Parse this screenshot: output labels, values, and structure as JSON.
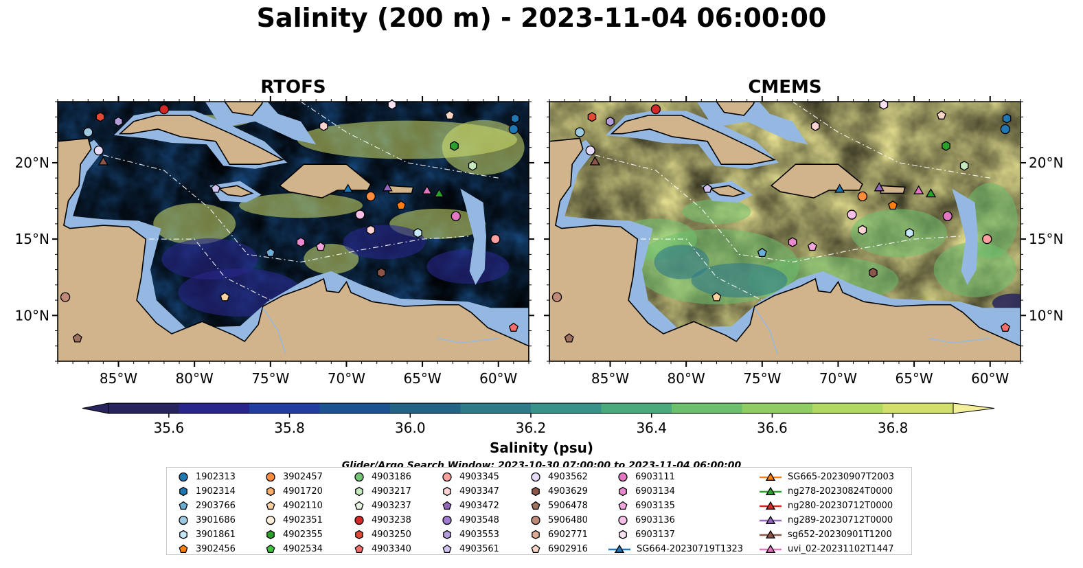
{
  "title": "Salinity (200 m) - 2023-11-04 06:00:00",
  "panels": [
    {
      "title": "RTOFS",
      "model": "rtofs"
    },
    {
      "title": "CMEMS",
      "model": "cmems"
    }
  ],
  "axes": {
    "lon_ticks": [
      "85°W",
      "80°W",
      "75°W",
      "70°W",
      "65°W",
      "60°W"
    ],
    "lat_ticks": [
      "20°N",
      "15°N",
      "10°N"
    ],
    "lon_range": [
      -89,
      -58
    ],
    "lat_range": [
      7,
      24
    ]
  },
  "colorbar": {
    "label": "Salinity (psu)",
    "ticks": [
      "35.6",
      "35.8",
      "36.0",
      "36.2",
      "36.4",
      "36.6",
      "36.8"
    ],
    "range": [
      35.5,
      36.9
    ],
    "colors": [
      "#27235c",
      "#28268a",
      "#1f3ea0",
      "#1b5390",
      "#236484",
      "#2f7a88",
      "#38928a",
      "#4aaa7c",
      "#6cbf6d",
      "#8ecd62",
      "#b1d860",
      "#d1e06d",
      "#f4ef9a"
    ]
  },
  "search_window": "Glider/Argo Search Window: 2023-10-30 07:00:00 to 2023-11-04 06:00:00",
  "colors": {
    "land": "#d2b48c",
    "shallow": "#94b8e2",
    "deep": "#1e2a70"
  },
  "legend": [
    {
      "label": "1902313",
      "marker": "circle",
      "color": "#1f77b4"
    },
    {
      "label": "1902314",
      "marker": "hexagon",
      "color": "#1f77b4"
    },
    {
      "label": "2903766",
      "marker": "pentagon",
      "color": "#6baed6"
    },
    {
      "label": "3901686",
      "marker": "circle",
      "color": "#9ecae1"
    },
    {
      "label": "3901861",
      "marker": "hexagon",
      "color": "#c6e7f7"
    },
    {
      "label": "3902456",
      "marker": "pentagon",
      "color": "#ff7f0e"
    },
    {
      "label": "3902457",
      "marker": "circle",
      "color": "#fd8d3c"
    },
    {
      "label": "4901720",
      "marker": "hexagon",
      "color": "#fdae6b"
    },
    {
      "label": "4902110",
      "marker": "pentagon",
      "color": "#fdd0a2"
    },
    {
      "label": "4902351",
      "marker": "circle",
      "color": "#feeeda"
    },
    {
      "label": "4902355",
      "marker": "hexagon",
      "color": "#2ca02c"
    },
    {
      "label": "4902534",
      "marker": "pentagon",
      "color": "#41c441"
    },
    {
      "label": "4903186",
      "marker": "circle",
      "color": "#74c476"
    },
    {
      "label": "4903217",
      "marker": "hexagon",
      "color": "#c7e9c0"
    },
    {
      "label": "4903237",
      "marker": "pentagon",
      "color": "#e5f5e0"
    },
    {
      "label": "4903238",
      "marker": "circle",
      "color": "#d62728"
    },
    {
      "label": "4903250",
      "marker": "hexagon",
      "color": "#e34a33"
    },
    {
      "label": "4903340",
      "marker": "pentagon",
      "color": "#f46d6d"
    },
    {
      "label": "4903345",
      "marker": "circle",
      "color": "#fc9f9f"
    },
    {
      "label": "4903347",
      "marker": "hexagon",
      "color": "#fdd3d3"
    },
    {
      "label": "4903472",
      "marker": "pentagon",
      "color": "#9467bd"
    },
    {
      "label": "4903548",
      "marker": "circle",
      "color": "#9e7bd0"
    },
    {
      "label": "4903553",
      "marker": "hexagon",
      "color": "#b39ddb"
    },
    {
      "label": "4903561",
      "marker": "pentagon",
      "color": "#d0c2ee"
    },
    {
      "label": "4903562",
      "marker": "circle",
      "color": "#e6dcf7"
    },
    {
      "label": "4903629",
      "marker": "hexagon",
      "color": "#8c564b"
    },
    {
      "label": "5906478",
      "marker": "pentagon",
      "color": "#a0715f"
    },
    {
      "label": "5906480",
      "marker": "circle",
      "color": "#c08a78"
    },
    {
      "label": "6902771",
      "marker": "hexagon",
      "color": "#e0ab98"
    },
    {
      "label": "6902916",
      "marker": "pentagon",
      "color": "#f7d5c6"
    },
    {
      "label": "6903111",
      "marker": "circle",
      "color": "#e377c2"
    },
    {
      "label": "6903134",
      "marker": "hexagon",
      "color": "#e989cf"
    },
    {
      "label": "6903135",
      "marker": "pentagon",
      "color": "#f2a5dc"
    },
    {
      "label": "6903136",
      "marker": "circle",
      "color": "#f7bfe6"
    },
    {
      "label": "6903137",
      "marker": "hexagon",
      "color": "#fbe1f2"
    },
    {
      "label": "SG664-20230719T1323",
      "marker": "triangle",
      "color": "#1f77b4"
    },
    {
      "label": "SG665-20230907T2003",
      "marker": "triangle",
      "color": "#ff7f0e"
    },
    {
      "label": "ng278-20230824T0000",
      "marker": "triangle",
      "color": "#2ca02c"
    },
    {
      "label": "ng280-20230712T0000",
      "marker": "triangle",
      "color": "#d62728"
    },
    {
      "label": "ng289-20230712T0000",
      "marker": "triangle",
      "color": "#9467bd"
    },
    {
      "label": "sg652-20230901T1200",
      "marker": "triangle",
      "color": "#8c564b"
    },
    {
      "label": "uvi_02-20231102T1447",
      "marker": "triangle",
      "color": "#e377c2"
    }
  ],
  "observations": [
    {
      "id": "4903238",
      "lon": -82.0,
      "lat": 23.5
    },
    {
      "id": "4903250",
      "lon": -86.2,
      "lat": 23.0
    },
    {
      "id": "4903553",
      "lon": -85.0,
      "lat": 22.7
    },
    {
      "id": "3901686",
      "lon": -87.0,
      "lat": 22.0
    },
    {
      "id": "4903562",
      "lon": -86.3,
      "lat": 20.8
    },
    {
      "id": "sg652-20230901T1200",
      "lon": -86.0,
      "lat": 20.1
    },
    {
      "id": "6903137",
      "lon": -67.0,
      "lat": 23.8
    },
    {
      "id": "4903347",
      "lon": -71.5,
      "lat": 22.4
    },
    {
      "id": "4903561",
      "lon": -78.6,
      "lat": 18.3
    },
    {
      "id": "6902916",
      "lon": -63.2,
      "lat": 23.1
    },
    {
      "id": "4902355",
      "lon": -62.9,
      "lat": 21.1
    },
    {
      "id": "4903217",
      "lon": -61.7,
      "lat": 19.8
    },
    {
      "id": "1902313",
      "lon": -59.0,
      "lat": 22.2
    },
    {
      "id": "1902314",
      "lon": -58.9,
      "lat": 22.9
    },
    {
      "id": "SG664-20230719T1323",
      "lon": -69.9,
      "lat": 18.3
    },
    {
      "id": "ng289-20230712T0000",
      "lon": -67.3,
      "lat": 18.4
    },
    {
      "id": "uvi_02-20231102T1447",
      "lon": -64.7,
      "lat": 18.2
    },
    {
      "id": "ng278-20230824T0000",
      "lon": -63.9,
      "lat": 18.0
    },
    {
      "id": "3902457",
      "lon": -68.4,
      "lat": 17.8
    },
    {
      "id": "3902456",
      "lon": -66.4,
      "lat": 17.2
    },
    {
      "id": "6903136",
      "lon": -69.1,
      "lat": 16.6
    },
    {
      "id": "6903111",
      "lon": -62.8,
      "lat": 16.5
    },
    {
      "id": "4903347",
      "lon": -68.4,
      "lat": 15.6
    },
    {
      "id": "3901861",
      "lon": -65.3,
      "lat": 15.4
    },
    {
      "id": "6903134",
      "lon": -73.0,
      "lat": 14.8
    },
    {
      "id": "6903135",
      "lon": -71.7,
      "lat": 14.5
    },
    {
      "id": "2903766",
      "lon": -75.0,
      "lat": 14.1
    },
    {
      "id": "4903345",
      "lon": -60.2,
      "lat": 15.0
    },
    {
      "id": "4903629",
      "lon": -67.7,
      "lat": 12.8
    },
    {
      "id": "4902110",
      "lon": -78.0,
      "lat": 11.2
    },
    {
      "id": "5906480",
      "lon": -88.5,
      "lat": 11.2
    },
    {
      "id": "5906478",
      "lon": -87.7,
      "lat": 8.5
    },
    {
      "id": "4903340",
      "lon": -59.0,
      "lat": 9.2
    }
  ]
}
